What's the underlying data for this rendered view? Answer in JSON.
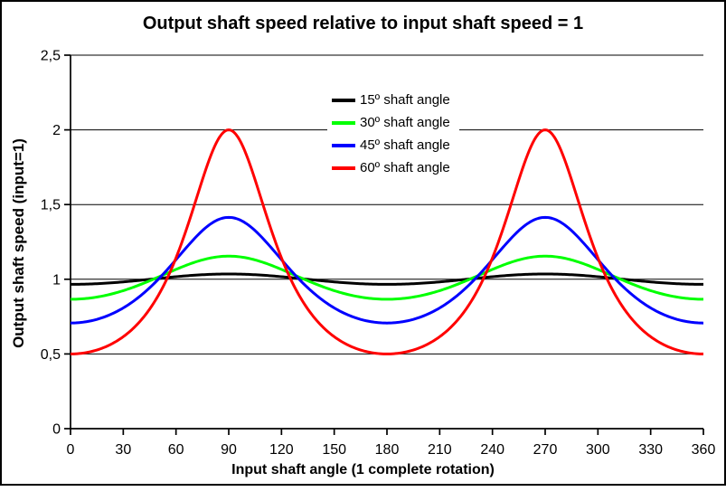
{
  "title": "Output shaft speed relative to input shaft speed = 1",
  "axes": {
    "x": {
      "title": "Input shaft angle (1 complete rotation)",
      "tick_labels": [
        "0",
        "30",
        "60",
        "90",
        "120",
        "150",
        "180",
        "210",
        "240",
        "270",
        "300",
        "330",
        "360"
      ]
    },
    "y": {
      "title": "Output shaft speed (input=1)",
      "tick_labels": [
        "0",
        "0,5",
        "1",
        "1,5",
        "2",
        "2,5"
      ]
    }
  },
  "legend": {
    "items": [
      {
        "label": "15º shaft angle",
        "color": "#000000"
      },
      {
        "label": "30º shaft angle",
        "color": "#00FF00"
      },
      {
        "label": "45º shaft angle",
        "color": "#0000FF"
      },
      {
        "label": "60º shaft angle",
        "color": "#FF0000"
      }
    ]
  },
  "chart_data": {
    "type": "line",
    "title": "Output shaft speed relative to input shaft speed = 1",
    "xlabel": "Input shaft angle (1 complete rotation)",
    "ylabel": "Output shaft speed (input=1)",
    "xlim": [
      0,
      360
    ],
    "ylim": [
      0,
      2.5
    ],
    "x_ticks": [
      0,
      30,
      60,
      90,
      120,
      150,
      180,
      210,
      240,
      270,
      300,
      330,
      360
    ],
    "y_ticks": [
      0,
      0.5,
      1,
      1.5,
      2,
      2.5
    ],
    "grid": "horizontal-only",
    "legend_position": "upper-center",
    "x": [
      0,
      15,
      30,
      45,
      60,
      75,
      90,
      105,
      120,
      135,
      150,
      165,
      180,
      195,
      210,
      225,
      240,
      255,
      270,
      285,
      300,
      315,
      330,
      345,
      360
    ],
    "series": [
      {
        "name": "15º shaft angle",
        "shaft_angle_deg": 15,
        "color": "#000000",
        "values": [
          0.966,
          0.97,
          0.982,
          0.999,
          1.017,
          1.03,
          1.035,
          1.03,
          1.017,
          0.999,
          0.982,
          0.97,
          0.966,
          0.97,
          0.982,
          0.999,
          1.017,
          1.03,
          1.035,
          1.03,
          1.017,
          0.999,
          0.982,
          0.97,
          0.966
        ]
      },
      {
        "name": "30º shaft angle",
        "shaft_angle_deg": 30,
        "color": "#00FF00",
        "values": [
          0.866,
          0.881,
          0.924,
          0.99,
          1.066,
          1.129,
          1.155,
          1.129,
          1.066,
          0.99,
          0.924,
          0.881,
          0.866,
          0.881,
          0.924,
          0.99,
          1.066,
          1.129,
          1.155,
          1.129,
          1.066,
          0.99,
          0.924,
          0.881,
          0.866
        ]
      },
      {
        "name": "45º shaft angle",
        "shaft_angle_deg": 45,
        "color": "#0000FF",
        "values": [
          0.707,
          0.732,
          0.808,
          0.943,
          1.131,
          1.325,
          1.414,
          1.325,
          1.131,
          0.943,
          0.808,
          0.732,
          0.707,
          0.732,
          0.808,
          0.943,
          1.131,
          1.325,
          1.414,
          1.325,
          1.131,
          0.943,
          0.808,
          0.732,
          0.707
        ]
      },
      {
        "name": "60º shaft angle",
        "shaft_angle_deg": 60,
        "color": "#FF0000",
        "values": [
          0.5,
          0.526,
          0.615,
          0.8,
          1.143,
          1.665,
          2.0,
          1.665,
          1.143,
          0.8,
          0.615,
          0.526,
          0.5,
          0.526,
          0.615,
          0.8,
          1.143,
          1.665,
          2.0,
          1.665,
          1.143,
          0.8,
          0.615,
          0.526,
          0.5
        ]
      }
    ]
  }
}
